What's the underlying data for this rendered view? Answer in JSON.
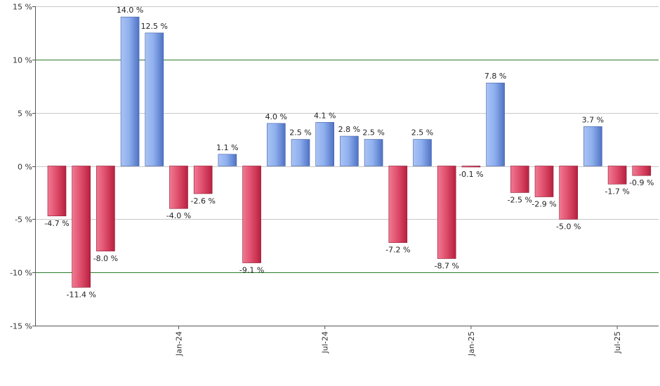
{
  "chart_data": {
    "type": "bar",
    "title": "",
    "xlabel": "",
    "ylabel": "",
    "ylim": [
      -15,
      15
    ],
    "yticks": [
      15,
      10,
      5,
      0,
      -5,
      -10,
      -15
    ],
    "ytick_suffix": " %",
    "value_suffix": " %",
    "grid": true,
    "highlight_lines": [
      10,
      -10
    ],
    "colors": {
      "positive_light": "#aac4f4",
      "positive_dark": "#4f72c4",
      "negative_light": "#f07a92",
      "negative_dark": "#b8203f",
      "grid": "#c8c8c8",
      "highlight": "#2a7a2a",
      "axis": "#555555"
    },
    "values": [
      -4.7,
      -11.4,
      -8.0,
      14.0,
      12.5,
      -4.0,
      -2.6,
      1.1,
      -9.1,
      4.0,
      2.5,
      4.1,
      2.8,
      2.5,
      -7.2,
      2.5,
      -8.7,
      -0.1,
      7.8,
      -2.5,
      -2.9,
      -5.0,
      3.7,
      -1.7,
      -0.9
    ],
    "labels": [
      "-4.7 %",
      "-11.4 %",
      "-8.0 %",
      "14.0 %",
      "12.5 %",
      "-4.0 %",
      "-2.6 %",
      "1.1 %",
      "-9.1 %",
      "4.0 %",
      "2.5 %",
      "4.1 %",
      "2.8 %",
      "2.5 %",
      "-7.2 %",
      "2.5 %",
      "-8.7 %",
      "-0.1 %",
      "7.8 %",
      "-2.5 %",
      "-2.9 %",
      "-5.0 %",
      "3.7 %",
      "-1.7 %",
      "-0.9 %"
    ],
    "x_ticks": [
      {
        "label": "Jan-24",
        "index": 5
      },
      {
        "label": "Jul-24",
        "index": 11
      },
      {
        "label": "Jan-25",
        "index": 17
      },
      {
        "label": "Jul-25",
        "index": 23
      }
    ]
  }
}
